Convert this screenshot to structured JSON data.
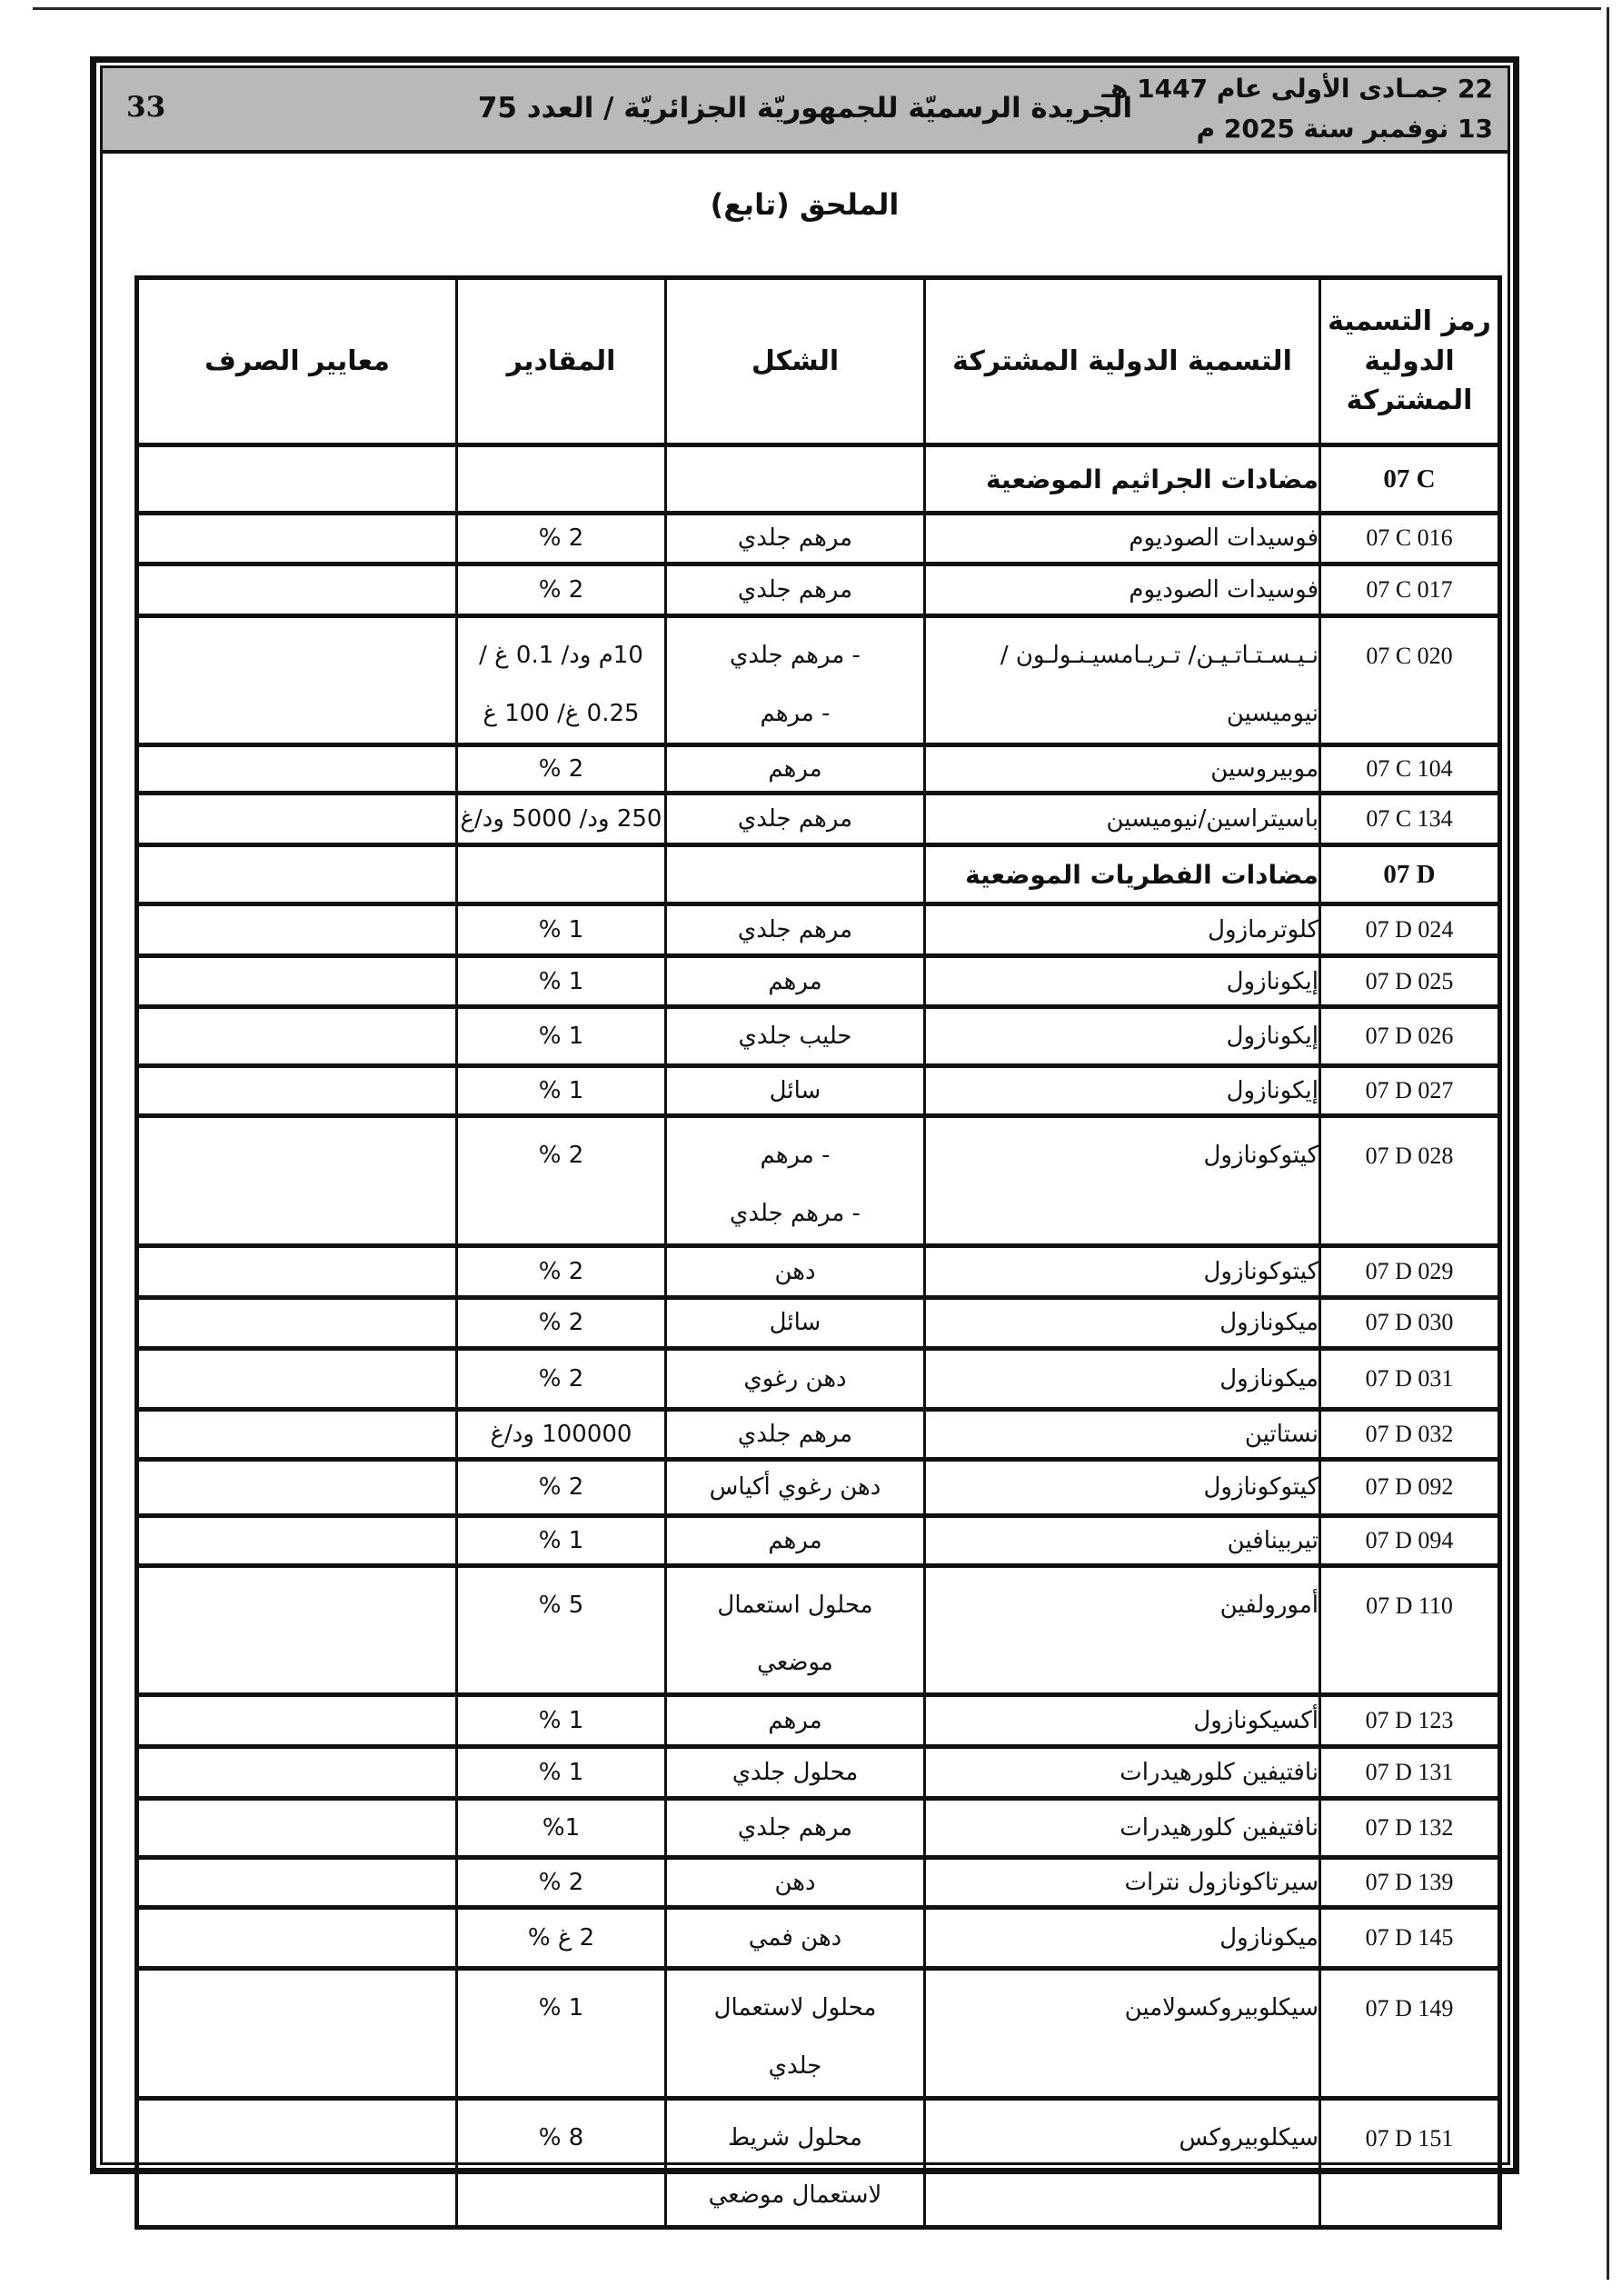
{
  "colors": {
    "band_gray": "#b9b9b9",
    "ink": "#111111"
  },
  "page": {
    "number": "33",
    "date_hijri": "22 جمـادى الأولى عام 1447 هـ",
    "date_gregorian": "13 نوفمبر سنة 2025 م",
    "journal_title": "الجريدة الرسميّة للجمهوريّة الجزائريّة / العدد 75",
    "annex_title": "الملحق (تابع)"
  },
  "table": {
    "headers": {
      "code": "رمز التسمية\nالدولية\nالمشتركة",
      "name": "التسمية الدولية المشتركة",
      "form": "الشكل",
      "qty": "المقادير",
      "criteria": "معايير الصرف"
    },
    "rows": [
      {
        "type": "section",
        "code": "07 C",
        "name": "مضادات الجراثيم الموضعية",
        "form": "",
        "qty": "",
        "criteria": ""
      },
      {
        "type": "data",
        "code": "07 C 016",
        "name": "فوسيدات الصوديوم",
        "form": "مرهم جلدي",
        "qty": "2 %",
        "criteria": ""
      },
      {
        "type": "data",
        "code": "07 C 017",
        "name": "فوسيدات الصوديوم",
        "form": "مرهم جلدي",
        "qty": "2 %",
        "criteria": ""
      },
      {
        "type": "data",
        "code": "07 C 020",
        "name": "نـيـسـتـاتـيـن/ تـريـامسيـنـولـون /\nنيوميسين",
        "form": "- مرهم جلدي\n- مرهم",
        "qty": "10م ود/ 0.1 غ /\n0.25 غ/ 100 غ",
        "criteria": ""
      },
      {
        "type": "data",
        "code": "07 C 104",
        "name": "موبيروسين",
        "form": "مرهم",
        "qty": "2 %",
        "criteria": ""
      },
      {
        "type": "data",
        "code": "07 C 134",
        "name": "باسيتراسين/نيوميسين",
        "form": "مرهم جلدي",
        "qty": "250 ود/ 5000 ود/غ",
        "criteria": ""
      },
      {
        "type": "section",
        "code": "07 D",
        "name": "مضادات الفطريات الموضعية",
        "form": "",
        "qty": "",
        "criteria": ""
      },
      {
        "type": "data",
        "code": "07 D 024",
        "name": "كلوترمازول",
        "form": "مرهم جلدي",
        "qty": "1 %",
        "criteria": ""
      },
      {
        "type": "data",
        "code": "07 D 025",
        "name": "إيكونازول",
        "form": "مرهم",
        "qty": "1 %",
        "criteria": ""
      },
      {
        "type": "data",
        "code": "07 D 026",
        "name": "إيكونازول",
        "form": "حليب جلدي",
        "qty": "1 %",
        "criteria": ""
      },
      {
        "type": "data",
        "code": "07 D 027",
        "name": "إيكونازول",
        "form": "سائل",
        "qty": "1 %",
        "criteria": ""
      },
      {
        "type": "data",
        "code": "07 D 028",
        "name": "كيتوكونازول",
        "form": "- مرهم\n- مرهم جلدي",
        "qty": "2 %",
        "criteria": ""
      },
      {
        "type": "data",
        "code": "07 D 029",
        "name": "كيتوكونازول",
        "form": "دهن",
        "qty": "2 %",
        "criteria": ""
      },
      {
        "type": "data",
        "code": "07 D 030",
        "name": "ميكونازول",
        "form": "سائل",
        "qty": "2 %",
        "criteria": ""
      },
      {
        "type": "data",
        "code": "07 D 031",
        "name": "ميكونازول",
        "form": "دهن رغوي",
        "qty": "2 %",
        "criteria": ""
      },
      {
        "type": "data",
        "code": "07 D 032",
        "name": "نستاتين",
        "form": "مرهم جلدي",
        "qty": "100000 ود/غ",
        "criteria": ""
      },
      {
        "type": "data",
        "code": "07 D 092",
        "name": "كيتوكونازول",
        "form": "دهن رغوي أكياس",
        "qty": "2 %",
        "criteria": ""
      },
      {
        "type": "data",
        "code": "07 D 094",
        "name": "تيربينافين",
        "form": "مرهم",
        "qty": "1 %",
        "criteria": ""
      },
      {
        "type": "data",
        "code": "07 D 110",
        "name": "أمورولفين",
        "form": "محلول استعمال\nموضعي",
        "qty": "5 %",
        "criteria": ""
      },
      {
        "type": "data",
        "code": "07 D 123",
        "name": "أكسيكونازول",
        "form": "مرهم",
        "qty": "1 %",
        "criteria": ""
      },
      {
        "type": "data",
        "code": "07 D 131",
        "name": "نافتيفين كلورهيدرات",
        "form": "محلول جلدي",
        "qty": "1 %",
        "criteria": ""
      },
      {
        "type": "data",
        "code": "07 D 132",
        "name": "نافتيفين كلورهيدرات",
        "form": "مرهم جلدي",
        "qty": "%1",
        "criteria": ""
      },
      {
        "type": "data",
        "code": "07 D 139",
        "name": "سيرتاكونازول نترات",
        "form": "دهن",
        "qty": "2 %",
        "criteria": ""
      },
      {
        "type": "data",
        "code": "07 D 145",
        "name": "ميكونازول",
        "form": "دهن فمي",
        "qty": "2 غ %",
        "criteria": ""
      },
      {
        "type": "data",
        "code": "07 D 149",
        "name": "سيكلوبيروكسولامين",
        "form": "محلول لاستعمال\nجلدي",
        "qty": "1 %",
        "criteria": ""
      },
      {
        "type": "data",
        "code": "07 D 151",
        "name": "سيكلوبيروكس",
        "form": "محلول شريط\nلاستعمال موضعي",
        "qty": "8 %",
        "criteria": ""
      }
    ]
  }
}
